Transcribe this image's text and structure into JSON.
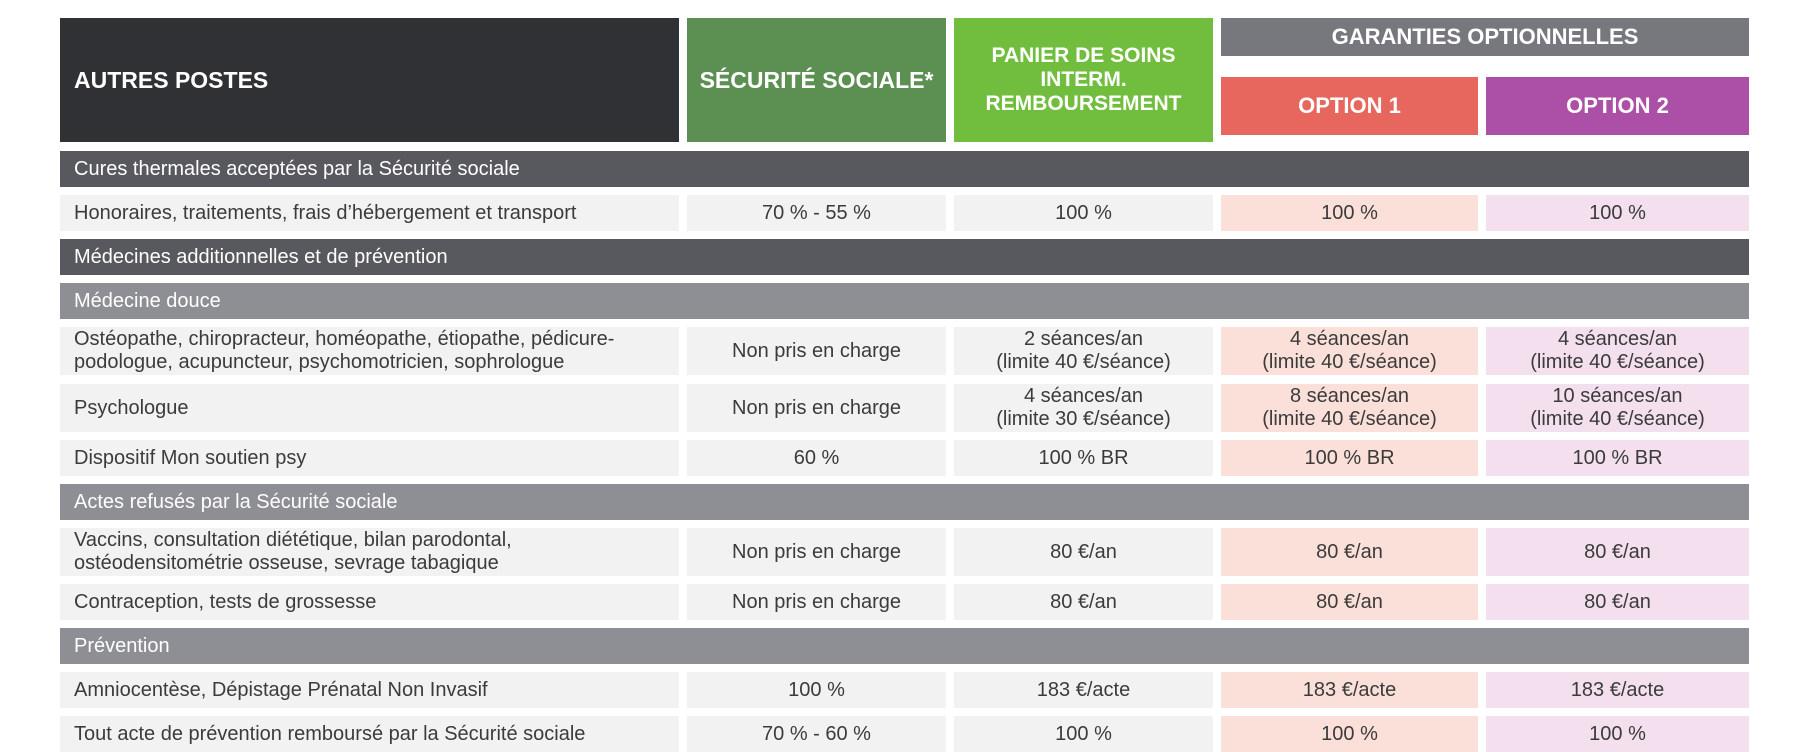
{
  "header": {
    "autres_postes": "AUTRES POSTES",
    "securite_sociale": "SÉCURITÉ SOCIALE*",
    "panier_line1": "PANIER DE SOINS",
    "panier_line2": "INTERM.",
    "panier_line3": "REMBOURSEMENT",
    "garanties": "GARANTIES OPTIONNELLES",
    "option1": "OPTION 1",
    "option2": "OPTION 2"
  },
  "colors": {
    "header_dark": "#2f3135",
    "securite": "#5c8f52",
    "panier": "#71bd3e",
    "garanties": "#76787d",
    "option1": "#e7675e",
    "option2": "#ac4fa7",
    "section_dark": "#58595e",
    "section_mid": "#8e8f94",
    "option1_cell": "#fbe0da",
    "option2_cell": "#f3dfee"
  },
  "sections": {
    "cures": "Cures thermales acceptées par la Sécurité sociale",
    "medecines": "Médecines additionnelles et de prévention",
    "douce": "Médecine douce",
    "refuses": "Actes refusés par la Sécurité sociale",
    "prevention": "Prévention"
  },
  "rows": {
    "honoraires": {
      "label": "Honoraires, traitements, frais d’hébergement et transport",
      "secu": "70 % - 55 %",
      "panier": "100 %",
      "opt1": "100 %",
      "opt2": "100 %"
    },
    "osteo": {
      "label1": "Ostéopathe, chiropracteur, homéopathe, étiopathe, pédicure-",
      "label2": "podologue, acupuncteur, psychomotricien, sophrologue",
      "secu": "Non pris en charge",
      "panier1": "2 séances/an",
      "panier2": "(limite 40 €/séance)",
      "opt1_1": "4 séances/an",
      "opt1_2": "(limite 40 €/séance)",
      "opt2_1": "4 séances/an",
      "opt2_2": "(limite 40 €/séance)"
    },
    "psycho": {
      "label": "Psychologue",
      "secu": "Non pris en charge",
      "panier1": "4 séances/an",
      "panier2": "(limite 30 €/séance)",
      "opt1_1": "8 séances/an",
      "opt1_2": "(limite 40 €/séance)",
      "opt2_1": "10 séances/an",
      "opt2_2": "(limite 40 €/séance)"
    },
    "soutien": {
      "label": "Dispositif Mon soutien psy",
      "secu": "60 %",
      "panier": "100 % BR",
      "opt1": "100 % BR",
      "opt2": "100 % BR"
    },
    "vaccins": {
      "label1": "Vaccins, consultation diététique, bilan parodontal,",
      "label2": "ostéodensitométrie osseuse, sevrage tabagique",
      "secu": "Non pris en charge",
      "panier": "80 €/an",
      "opt1": "80 €/an",
      "opt2": "80 €/an"
    },
    "contraception": {
      "label": "Contraception, tests de grossesse",
      "secu": "Non pris en charge",
      "panier": "80 €/an",
      "opt1": "80 €/an",
      "opt2": "80 €/an"
    },
    "amnio": {
      "label": "Amniocentèse, Dépistage Prénatal Non Invasif",
      "secu": "100 %",
      "panier": "183 €/acte",
      "opt1": "183 €/acte",
      "opt2": "183 €/acte"
    },
    "acte_prev": {
      "label": "Tout acte de prévention remboursé par la Sécurité sociale",
      "secu": "70 % - 60 %",
      "panier": "100 %",
      "opt1": "100 %",
      "opt2": "100 %"
    }
  }
}
